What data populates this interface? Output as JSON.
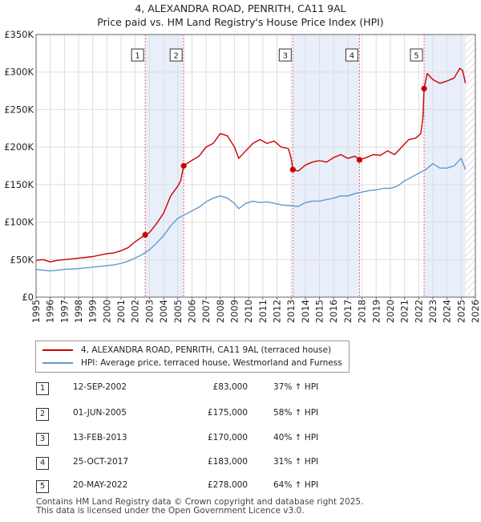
{
  "header": {
    "line1": "4, ALEXANDRA ROAD, PENRITH, CA11 9AL",
    "line2": "Price paid vs. HM Land Registry's House Price Index (HPI)"
  },
  "colors": {
    "property": "#cc0000",
    "hpi": "#6699cc",
    "band": "#e8eefa",
    "grid": "#dddddd"
  },
  "chart_data": {
    "type": "line",
    "title": "Price paid vs. HM Land Registry's House Price Index (HPI)",
    "xlim": [
      1995,
      2026
    ],
    "ylim": [
      0,
      350000
    ],
    "x_ticks": [
      1995,
      1996,
      1997,
      1998,
      1999,
      2000,
      2001,
      2002,
      2003,
      2004,
      2005,
      2006,
      2007,
      2008,
      2009,
      2010,
      2011,
      2012,
      2013,
      2014,
      2015,
      2016,
      2017,
      2018,
      2019,
      2020,
      2021,
      2022,
      2023,
      2024,
      2025,
      2026
    ],
    "y_ticks": [
      {
        "value": 0,
        "label": "£0"
      },
      {
        "value": 50000,
        "label": "£50K"
      },
      {
        "value": 100000,
        "label": "£100K"
      },
      {
        "value": 150000,
        "label": "£150K"
      },
      {
        "value": 200000,
        "label": "£200K"
      },
      {
        "value": 250000,
        "label": "£250K"
      },
      {
        "value": 300000,
        "label": "£300K"
      },
      {
        "value": 350000,
        "label": "£350K"
      }
    ],
    "hatched_from": 2025.3,
    "series": [
      {
        "name": "4, ALEXANDRA ROAD, PENRITH, CA11 9AL (terraced house)",
        "color": "#cc0000",
        "points": [
          [
            1995.0,
            49000
          ],
          [
            1995.5,
            50000
          ],
          [
            1996.0,
            47000
          ],
          [
            1996.5,
            49000
          ],
          [
            1997.0,
            50000
          ],
          [
            1997.5,
            51000
          ],
          [
            1998.0,
            52000
          ],
          [
            1998.5,
            53000
          ],
          [
            1999.0,
            54000
          ],
          [
            1999.5,
            56000
          ],
          [
            2000.0,
            58000
          ],
          [
            2000.5,
            59000
          ],
          [
            2001.0,
            62000
          ],
          [
            2001.5,
            66000
          ],
          [
            2002.0,
            74000
          ],
          [
            2002.7,
            83000
          ],
          [
            2003.0,
            86000
          ],
          [
            2003.5,
            98000
          ],
          [
            2004.0,
            112000
          ],
          [
            2004.5,
            135000
          ],
          [
            2005.0,
            148000
          ],
          [
            2005.2,
            155000
          ],
          [
            2005.42,
            175000
          ],
          [
            2005.8,
            180000
          ],
          [
            2006.5,
            188000
          ],
          [
            2007.0,
            200000
          ],
          [
            2007.5,
            205000
          ],
          [
            2008.0,
            218000
          ],
          [
            2008.5,
            215000
          ],
          [
            2009.0,
            200000
          ],
          [
            2009.3,
            185000
          ],
          [
            2009.8,
            195000
          ],
          [
            2010.3,
            205000
          ],
          [
            2010.8,
            210000
          ],
          [
            2011.3,
            205000
          ],
          [
            2011.8,
            208000
          ],
          [
            2012.3,
            200000
          ],
          [
            2012.8,
            198000
          ],
          [
            2013.0,
            185000
          ],
          [
            2013.12,
            170000
          ],
          [
            2013.5,
            168000
          ],
          [
            2014.0,
            176000
          ],
          [
            2014.5,
            180000
          ],
          [
            2015.0,
            182000
          ],
          [
            2015.5,
            180000
          ],
          [
            2016.0,
            186000
          ],
          [
            2016.5,
            190000
          ],
          [
            2017.0,
            185000
          ],
          [
            2017.5,
            188000
          ],
          [
            2017.82,
            183000
          ],
          [
            2018.3,
            186000
          ],
          [
            2018.8,
            190000
          ],
          [
            2019.3,
            189000
          ],
          [
            2019.8,
            195000
          ],
          [
            2020.3,
            190000
          ],
          [
            2020.8,
            200000
          ],
          [
            2021.3,
            210000
          ],
          [
            2021.8,
            212000
          ],
          [
            2022.15,
            218000
          ],
          [
            2022.3,
            240000
          ],
          [
            2022.38,
            278000
          ],
          [
            2022.6,
            298000
          ],
          [
            2023.0,
            290000
          ],
          [
            2023.5,
            285000
          ],
          [
            2024.0,
            288000
          ],
          [
            2024.5,
            292000
          ],
          [
            2024.9,
            305000
          ],
          [
            2025.1,
            302000
          ],
          [
            2025.3,
            285000
          ]
        ]
      },
      {
        "name": "HPI: Average price, terraced house, Westmorland and Furness",
        "color": "#6699cc",
        "points": [
          [
            1995.0,
            37000
          ],
          [
            1995.5,
            36000
          ],
          [
            1996.0,
            35000
          ],
          [
            1996.5,
            36000
          ],
          [
            1997.0,
            37000
          ],
          [
            1997.5,
            37500
          ],
          [
            1998.0,
            38000
          ],
          [
            1998.5,
            39000
          ],
          [
            1999.0,
            40000
          ],
          [
            1999.5,
            41000
          ],
          [
            2000.0,
            42000
          ],
          [
            2000.5,
            43000
          ],
          [
            2001.0,
            45000
          ],
          [
            2001.5,
            48000
          ],
          [
            2002.0,
            52000
          ],
          [
            2002.5,
            57000
          ],
          [
            2003.0,
            63000
          ],
          [
            2003.5,
            72000
          ],
          [
            2004.0,
            82000
          ],
          [
            2004.5,
            95000
          ],
          [
            2005.0,
            105000
          ],
          [
            2005.5,
            110000
          ],
          [
            2006.0,
            115000
          ],
          [
            2006.5,
            120000
          ],
          [
            2007.0,
            127000
          ],
          [
            2007.5,
            132000
          ],
          [
            2008.0,
            135000
          ],
          [
            2008.5,
            132000
          ],
          [
            2009.0,
            125000
          ],
          [
            2009.3,
            118000
          ],
          [
            2009.8,
            125000
          ],
          [
            2010.3,
            128000
          ],
          [
            2010.8,
            126000
          ],
          [
            2011.3,
            127000
          ],
          [
            2011.8,
            125000
          ],
          [
            2012.3,
            123000
          ],
          [
            2012.8,
            122000
          ],
          [
            2013.5,
            121000
          ],
          [
            2014.0,
            126000
          ],
          [
            2014.5,
            128000
          ],
          [
            2015.0,
            128000
          ],
          [
            2015.5,
            130000
          ],
          [
            2016.0,
            132000
          ],
          [
            2016.5,
            135000
          ],
          [
            2017.0,
            135000
          ],
          [
            2017.5,
            138000
          ],
          [
            2018.0,
            140000
          ],
          [
            2018.5,
            142000
          ],
          [
            2019.0,
            143000
          ],
          [
            2019.5,
            145000
          ],
          [
            2020.0,
            145000
          ],
          [
            2020.5,
            148000
          ],
          [
            2021.0,
            155000
          ],
          [
            2021.5,
            160000
          ],
          [
            2022.0,
            165000
          ],
          [
            2022.5,
            170000
          ],
          [
            2023.0,
            178000
          ],
          [
            2023.5,
            172000
          ],
          [
            2024.0,
            172000
          ],
          [
            2024.5,
            175000
          ],
          [
            2025.0,
            185000
          ],
          [
            2025.3,
            170000
          ]
        ]
      }
    ],
    "transactions": [
      {
        "n": "1",
        "x": 2002.7,
        "y": 83000
      },
      {
        "n": "2",
        "x": 2005.42,
        "y": 175000
      },
      {
        "n": "3",
        "x": 2013.12,
        "y": 170000
      },
      {
        "n": "4",
        "x": 2017.82,
        "y": 183000
      },
      {
        "n": "5",
        "x": 2022.38,
        "y": 278000
      }
    ],
    "bands": [
      [
        2002.7,
        2005.42
      ],
      [
        2013.12,
        2017.82
      ],
      [
        2022.38,
        2025.3
      ]
    ],
    "legend_position": "below"
  },
  "legend": {
    "property_label": "4, ALEXANDRA ROAD, PENRITH, CA11 9AL (terraced house)",
    "hpi_label": "HPI: Average price, terraced house, Westmorland and Furness"
  },
  "table": [
    {
      "num": "1",
      "date": "12-SEP-2002",
      "price": "£83,000",
      "hpi": "37% ↑ HPI"
    },
    {
      "num": "2",
      "date": "01-JUN-2005",
      "price": "£175,000",
      "hpi": "58% ↑ HPI"
    },
    {
      "num": "3",
      "date": "13-FEB-2013",
      "price": "£170,000",
      "hpi": "40% ↑ HPI"
    },
    {
      "num": "4",
      "date": "25-OCT-2017",
      "price": "£183,000",
      "hpi": "31% ↑ HPI"
    },
    {
      "num": "5",
      "date": "20-MAY-2022",
      "price": "£278,000",
      "hpi": "64% ↑ HPI"
    }
  ],
  "footer": {
    "line1": "Contains HM Land Registry data © Crown copyright and database right 2025.",
    "line2": "This data is licensed under the Open Government Licence v3.0."
  }
}
